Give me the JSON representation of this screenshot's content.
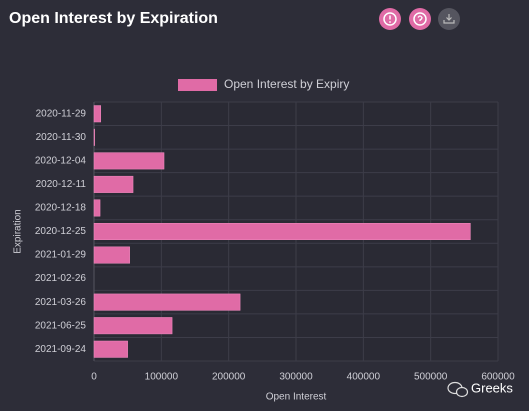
{
  "chart_data": {
    "type": "bar",
    "orientation": "horizontal",
    "title": "Open Interest by Expiration",
    "xlabel": "Open Interest",
    "ylabel": "Expiration",
    "categories": [
      "2020-11-29",
      "2020-11-30",
      "2020-12-04",
      "2020-12-11",
      "2020-12-18",
      "2020-12-25",
      "2021-01-29",
      "2021-02-26",
      "2021-03-26",
      "2021-06-25",
      "2021-09-24"
    ],
    "series": [
      {
        "name": "Open Interest by Expiry",
        "color": "#e06ba6",
        "values": [
          10000,
          1000,
          104000,
          58000,
          9000,
          559000,
          53000,
          0,
          217000,
          116000,
          50000
        ]
      }
    ],
    "xlim": [
      0,
      600000
    ],
    "xticks": [
      0,
      100000,
      200000,
      300000,
      400000,
      500000,
      600000
    ],
    "grid": true
  },
  "watermark": "Greeks"
}
